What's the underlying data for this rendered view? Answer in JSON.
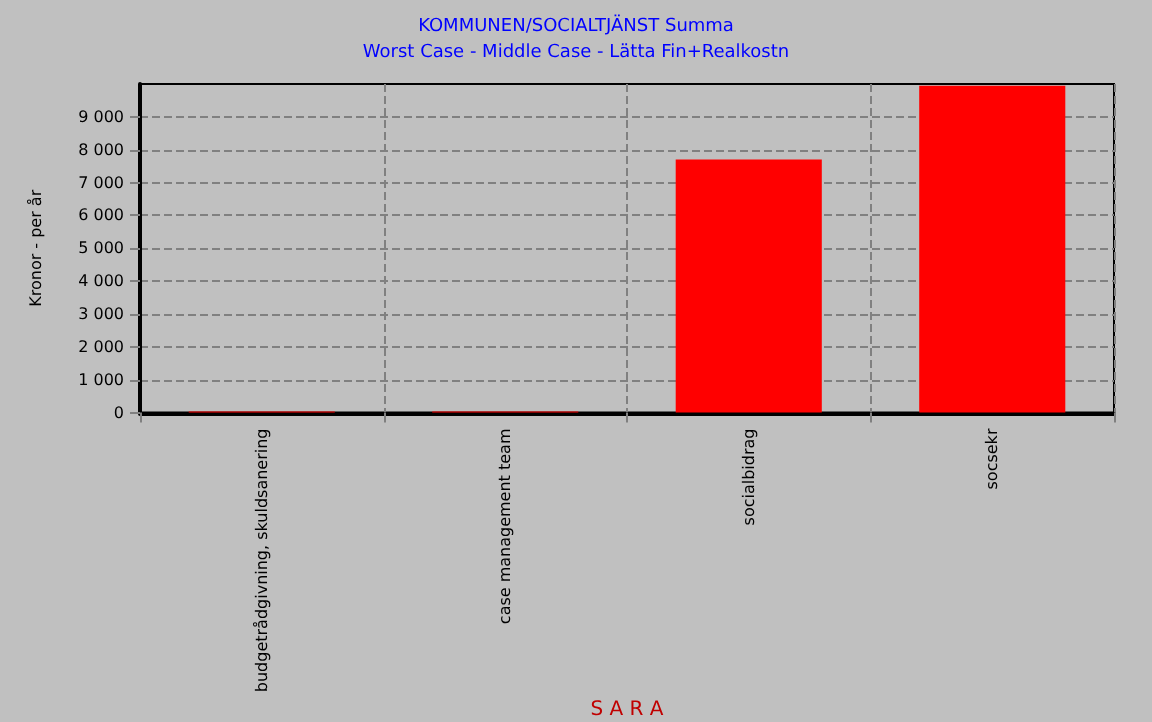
{
  "chart_data": {
    "type": "bar",
    "title": "KOMMUNEN/SOCIALTJÄNST Summa",
    "subtitle": "Worst Case - Middle Case - Lätta Fin+Realkostn",
    "xlabel": "S A R A",
    "ylabel": "Kronor - per år",
    "categories": [
      "budgetrådgivning, skuldsanering",
      "case management team",
      "socialbidrag",
      "socsekr"
    ],
    "values": [
      30,
      30,
      7700,
      9950
    ],
    "color": "#ff0000",
    "ylim": [
      0,
      10000
    ],
    "yticks": [
      0,
      1000,
      2000,
      3000,
      4000,
      5000,
      6000,
      7000,
      8000,
      9000
    ],
    "grid": true
  }
}
